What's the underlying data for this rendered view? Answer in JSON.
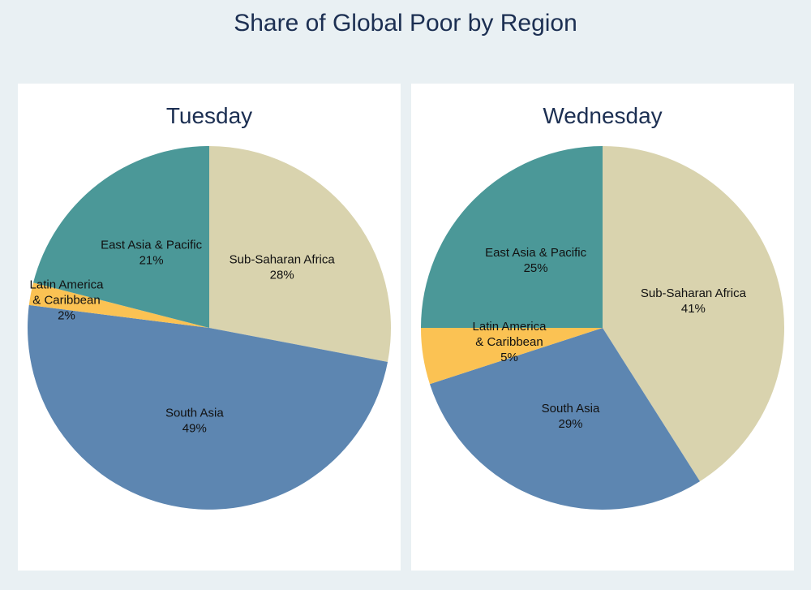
{
  "title": "Share of Global Poor by Region",
  "chart_data": [
    {
      "type": "pie",
      "title": "Tuesday",
      "slices": [
        {
          "label": [
            "Sub-Saharan Africa"
          ],
          "value": 28,
          "value_label": "28%",
          "color": "#d9d3ae"
        },
        {
          "label": [
            "South Asia"
          ],
          "value": 49,
          "value_label": "49%",
          "color": "#5d86b1"
        },
        {
          "label": [
            "Latin America",
            "& Caribbean"
          ],
          "value": 2,
          "value_label": "2%",
          "color": "#fbc253"
        },
        {
          "label": [
            "East Asia & Pacific"
          ],
          "value": 21,
          "value_label": "21%",
          "color": "#4b9898"
        }
      ]
    },
    {
      "type": "pie",
      "title": "Wednesday",
      "slices": [
        {
          "label": [
            "Sub-Saharan Africa"
          ],
          "value": 41,
          "value_label": "41%",
          "color": "#d9d3ae"
        },
        {
          "label": [
            "South Asia"
          ],
          "value": 29,
          "value_label": "29%",
          "color": "#5d86b1"
        },
        {
          "label": [
            "Latin America",
            "& Caribbean"
          ],
          "value": 5,
          "value_label": "5%",
          "color": "#fbc253"
        },
        {
          "label": [
            "East Asia & Pacific"
          ],
          "value": 25,
          "value_label": "25%",
          "color": "#4b9898"
        }
      ]
    }
  ]
}
